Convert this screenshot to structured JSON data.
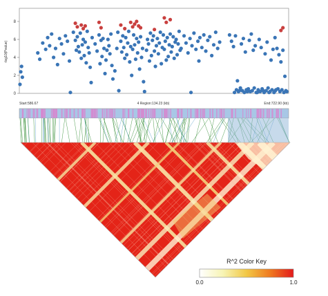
{
  "chart_data": [
    {
      "type": "scatter",
      "title": "",
      "ylabel": "-log10(Pvalue)",
      "xlabel": "",
      "yticks": [
        "0",
        "2",
        "4",
        "6",
        "8"
      ],
      "ylim": [
        0,
        9
      ],
      "xlim": [
        586.67,
        722.9
      ],
      "region": {
        "start_label": "Start:586.67",
        "center_label": "4 Region:134.23 (kb)",
        "end_label": "End:722.90 (kb)"
      },
      "series": [
        {
          "color": "#3a75b6",
          "points": [
            [
              587,
              1.0
            ],
            [
              587.4,
              2.4
            ],
            [
              587.8,
              3.0
            ],
            [
              588.2,
              1.8
            ],
            [
              596,
              4.5
            ],
            [
              597,
              3.8
            ],
            [
              598.5,
              5.6
            ],
            [
              600,
              4.9
            ],
            [
              601,
              6.2
            ],
            [
              602,
              5.3
            ],
            [
              603,
              6.6
            ],
            [
              604,
              4.0
            ],
            [
              605,
              5.0
            ],
            [
              606,
              3.2
            ],
            [
              607,
              6.1
            ],
            [
              608,
              5.5
            ],
            [
              609,
              4.4
            ],
            [
              610,
              6.4
            ],
            [
              611,
              5.8
            ],
            [
              612,
              3.6
            ],
            [
              612.5,
              0.1
            ],
            [
              614,
              6.8
            ],
            [
              615,
              5.9
            ],
            [
              615.5,
              4.8
            ],
            [
              616,
              6.3
            ],
            [
              616.5,
              5.2
            ],
            [
              617,
              4.6
            ],
            [
              617.5,
              6.7
            ],
            [
              618,
              3.9
            ],
            [
              618.5,
              5.4
            ],
            [
              619,
              6.0
            ],
            [
              619.5,
              4.2
            ],
            [
              620,
              5.7
            ],
            [
              620.5,
              3.4
            ],
            [
              621,
              6.9
            ],
            [
              621.5,
              5.1
            ],
            [
              622,
              4.5
            ],
            [
              622.5,
              2.9
            ],
            [
              623,
              1.2
            ],
            [
              623.5,
              6.2
            ],
            [
              625,
              5.5
            ],
            [
              626,
              4.7
            ],
            [
              627,
              6.5
            ],
            [
              627.5,
              3.3
            ],
            [
              628,
              5.9
            ],
            [
              628.5,
              4.1
            ],
            [
              629,
              6.1
            ],
            [
              629.5,
              5.0
            ],
            [
              630,
              2.2
            ],
            [
              630.5,
              3.7
            ],
            [
              631,
              4.8
            ],
            [
              631.5,
              6.0
            ],
            [
              632,
              5.3
            ],
            [
              632.5,
              4.4
            ],
            [
              633,
              6.6
            ],
            [
              633.5,
              3.1
            ],
            [
              634,
              1.6
            ],
            [
              635,
              2.5
            ],
            [
              636,
              5.0
            ],
            [
              636.5,
              6.8
            ],
            [
              637,
              0.3
            ],
            [
              638,
              5.8
            ],
            [
              638.5,
              4.6
            ],
            [
              639,
              6.4
            ],
            [
              639.5,
              5.1
            ],
            [
              640,
              3.9
            ],
            [
              640.5,
              6.2
            ],
            [
              641,
              4.3
            ],
            [
              641.5,
              5.6
            ],
            [
              642,
              6.9
            ],
            [
              642.5,
              3.5
            ],
            [
              643,
              5.2
            ],
            [
              643.5,
              2.0
            ],
            [
              644,
              4.9
            ],
            [
              644.5,
              6.5
            ],
            [
              645,
              5.4
            ],
            [
              645.5,
              3.8
            ],
            [
              646,
              6.1
            ],
            [
              646.5,
              4.5
            ],
            [
              647,
              5.7
            ],
            [
              647.5,
              2.7
            ],
            [
              648,
              6.3
            ],
            [
              648.5,
              4.0
            ],
            [
              649,
              5.0
            ],
            [
              649.5,
              1.3
            ],
            [
              650,
              0.2
            ],
            [
              651,
              4.8
            ],
            [
              651.5,
              6.0
            ],
            [
              652,
              5.5
            ],
            [
              652.5,
              3.6
            ],
            [
              653,
              6.7
            ],
            [
              653.5,
              4.2
            ],
            [
              654,
              5.9
            ],
            [
              654.5,
              6.4
            ],
            [
              655,
              4.7
            ],
            [
              655.5,
              3.0
            ],
            [
              656,
              5.3
            ],
            [
              656.5,
              6.1
            ],
            [
              657,
              4.4
            ],
            [
              657.5,
              5.6
            ],
            [
              658,
              6.8
            ],
            [
              658.5,
              3.3
            ],
            [
              659,
              5.1
            ],
            [
              659.5,
              6.5
            ],
            [
              660,
              4.9
            ],
            [
              660.5,
              5.8
            ],
            [
              661,
              3.7
            ],
            [
              661.5,
              6.2
            ],
            [
              662,
              4.1
            ],
            [
              662.5,
              5.4
            ],
            [
              663,
              6.6
            ],
            [
              663.5,
              4.6
            ],
            [
              664,
              5.2
            ],
            [
              664.5,
              6.3
            ],
            [
              665,
              3.9
            ],
            [
              665.5,
              5.7
            ],
            [
              666,
              6.0
            ],
            [
              666.5,
              4.3
            ],
            [
              667,
              5.5
            ],
            [
              667.5,
              6.9
            ],
            [
              668,
              4.8
            ],
            [
              668.5,
              5.0
            ],
            [
              670,
              6.4
            ],
            [
              671,
              5.6
            ],
            [
              672,
              4.5
            ],
            [
              673,
              6.1
            ],
            [
              673.5,
              0.1
            ],
            [
              674,
              5.3
            ],
            [
              675,
              6.7
            ],
            [
              676,
              4.9
            ],
            [
              677,
              5.8
            ],
            [
              677.5,
              3.6
            ],
            [
              678,
              6.2
            ],
            [
              679,
              5.1
            ],
            [
              680,
              6.5
            ],
            [
              681,
              4.7
            ],
            [
              682,
              5.9
            ],
            [
              683,
              6.3
            ],
            [
              684,
              4.2
            ],
            [
              685,
              5.4
            ],
            [
              686,
              6.8
            ],
            [
              687,
              5.0
            ],
            [
              688,
              5.7
            ],
            [
              693,
              6.5
            ],
            [
              694,
              5.8
            ],
            [
              695,
              5.2
            ],
            [
              696,
              6.4
            ],
            [
              697,
              1.4
            ],
            [
              698,
              0.3
            ],
            [
              699,
              5.5
            ],
            [
              700,
              6.1
            ],
            [
              701,
              4.6
            ],
            [
              702,
              0.2
            ],
            [
              703,
              5.9
            ],
            [
              704,
              6.6
            ],
            [
              705,
              4.8
            ],
            [
              706,
              5.3
            ],
            [
              707,
              0.1
            ],
            [
              708,
              6.0
            ],
            [
              709,
              5.1
            ],
            [
              710,
              0.3
            ],
            [
              711,
              4.4
            ],
            [
              712,
              5.7
            ],
            [
              713,
              0.1
            ],
            [
              714,
              3.7
            ],
            [
              715,
              4.9
            ],
            [
              716,
              6.2
            ],
            [
              716.5,
              0.4
            ],
            [
              717,
              5.0
            ],
            [
              718,
              4.3
            ],
            [
              719,
              3.5
            ],
            [
              720,
              4.8
            ],
            [
              721,
              1.9
            ],
            [
              722,
              0.2
            ],
            [
              704.5,
              0.3
            ],
            [
              705.5,
              0.6
            ],
            [
              706.5,
              0.1
            ],
            [
              707.5,
              0.4
            ],
            [
              708.5,
              0.2
            ],
            [
              709.5,
              0.5
            ],
            [
              710.5,
              0.1
            ],
            [
              711.5,
              0.3
            ],
            [
              712.5,
              0.6
            ],
            [
              713.5,
              0.2
            ],
            [
              714.5,
              0.4
            ],
            [
              715.5,
              0.1
            ],
            [
              716.2,
              0.3
            ],
            [
              717.5,
              0.5
            ],
            [
              718.5,
              0.2
            ],
            [
              719.5,
              0.4
            ],
            [
              720.5,
              0.1
            ],
            [
              721.5,
              0.3
            ],
            [
              702.5,
              0.5
            ],
            [
              703.5,
              0.2
            ],
            [
              701.5,
              0.4
            ],
            [
              700.5,
              0.1
            ],
            [
              699.5,
              0.3
            ],
            [
              698.5,
              0.6
            ],
            [
              697.5,
              0.2
            ],
            [
              696.5,
              0.4
            ],
            [
              695.5,
              0.1
            ]
          ]
        },
        {
          "color": "#c9403f",
          "points": [
            [
              615,
              7.8
            ],
            [
              616,
              7.4
            ],
            [
              618,
              7.6
            ],
            [
              619,
              7.2
            ],
            [
              620,
              7.5
            ],
            [
              627,
              7.9
            ],
            [
              628,
              7.3
            ],
            [
              638,
              7.6
            ],
            [
              640,
              7.2
            ],
            [
              643,
              7.9
            ],
            [
              644,
              7.4
            ],
            [
              645,
              7.7
            ],
            [
              646,
              8.0
            ],
            [
              647,
              7.5
            ],
            [
              648,
              7.3
            ],
            [
              655,
              7.1
            ],
            [
              660,
              8.4
            ],
            [
              661,
              7.9
            ],
            [
              663,
              8.2
            ],
            [
              720,
              7.3
            ],
            [
              719,
              7.0
            ]
          ]
        }
      ]
    },
    {
      "type": "heatmap",
      "title": "R^2 Color Key",
      "legend_title": "R^2 Color Key",
      "color_scale": [
        "#ffffff",
        "#f7f4b4",
        "#f2c845",
        "#ef7a1f",
        "#e31a1c"
      ],
      "range": [
        0,
        1
      ],
      "key_ticks": [
        "0.0",
        "1.0"
      ]
    }
  ]
}
